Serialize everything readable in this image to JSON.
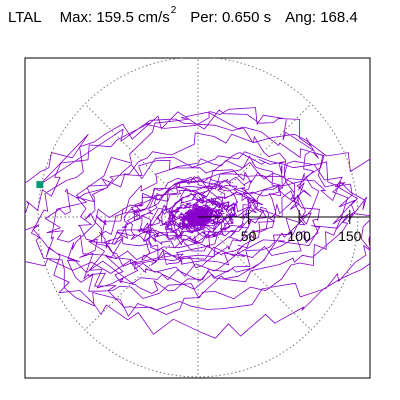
{
  "header": {
    "station": "LTAL",
    "max_label": "Max:",
    "max_value": "159.5 cm/s",
    "max_unit_exponent": "2",
    "period_label": "Per:",
    "period_value": "0.650 s",
    "angle_label": "Ang:",
    "angle_value": "168.4"
  },
  "chart_data": {
    "type": "polar-hodogram",
    "title": "",
    "radial_ticks": [
      50,
      100,
      150
    ],
    "radial_tick_labels": [
      "50",
      "100",
      "150"
    ],
    "range_circles": [
      50,
      100,
      150
    ],
    "radius_max": 170,
    "grid": "dotted circles and spokes at 45 degree steps",
    "max_amplitude": 159.5,
    "max_azimuth_deg": 168.4,
    "colors": {
      "trace": "#8800cc",
      "grid": "#777777",
      "marker": "#009977",
      "frame": "#000000"
    },
    "marker": "square marker at the peak"
  }
}
